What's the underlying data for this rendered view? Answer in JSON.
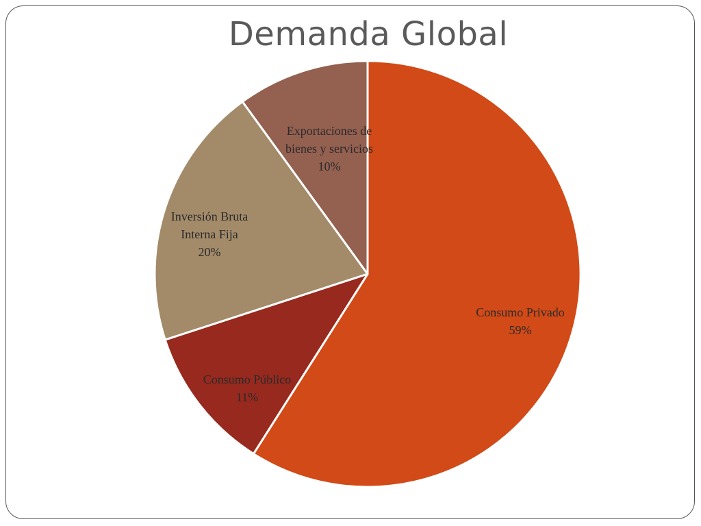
{
  "slide": {
    "title": "Demanda Global"
  },
  "chart_data": {
    "type": "pie",
    "title": "Demanda Global",
    "start_angle_deg": 0,
    "direction": "clockwise",
    "slices": [
      {
        "label_lines": [
          "Consumo Privado"
        ],
        "value": 59,
        "value_label": "59%",
        "color": "#d14a17"
      },
      {
        "label_lines": [
          "Consumo Público"
        ],
        "value": 11,
        "value_label": "11%",
        "color": "#97291e"
      },
      {
        "label_lines": [
          "Inversión Bruta",
          "Interna Fija"
        ],
        "value": 20,
        "value_label": "20%",
        "color": "#a38b6a"
      },
      {
        "label_lines": [
          "Exportaciones de",
          "bienes y servicios"
        ],
        "value": 10,
        "value_label": "10%",
        "color": "#946050"
      }
    ]
  }
}
